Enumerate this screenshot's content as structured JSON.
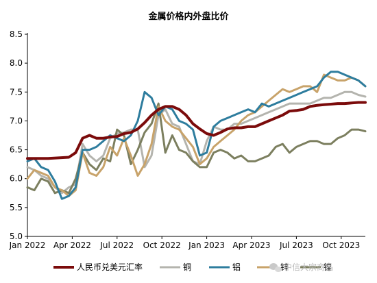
{
  "chart_data": {
    "type": "line",
    "title": "金属价格内外盘比价",
    "xlabel": "",
    "ylabel": "",
    "ylim": [
      5.0,
      8.5
    ],
    "yticks": [
      "5.0",
      "5.5",
      "6.0",
      "6.5",
      "7.0",
      "7.5",
      "8.0",
      "8.5"
    ],
    "xticks": [
      {
        "label": "Jan 2022",
        "t": 0
      },
      {
        "label": "Apr 2022",
        "t": 13
      },
      {
        "label": "Jul 2022",
        "t": 26
      },
      {
        "label": "Oct 2022",
        "t": 39
      },
      {
        "label": "Jan 2023",
        "t": 52
      },
      {
        "label": "Apr 2023",
        "t": 65
      },
      {
        "label": "Jul 2023",
        "t": 78
      },
      {
        "label": "Oct 2023",
        "t": 91
      }
    ],
    "x_unit": "weeks since Jan 2022",
    "grid": false,
    "legend_position": "bottom",
    "series": [
      {
        "name": "人民币兑美元汇率",
        "color": "#7b0b0b",
        "x": [
          0,
          6,
          12,
          14,
          16,
          18,
          20,
          22,
          24,
          26,
          28,
          30,
          32,
          34,
          36,
          38,
          40,
          42,
          44,
          46,
          48,
          50,
          52,
          54,
          56,
          58,
          60,
          62,
          64,
          66,
          68,
          70,
          72,
          74,
          76,
          78,
          80,
          82,
          84,
          86,
          88,
          90,
          92,
          94,
          96,
          98
        ],
        "values": [
          6.35,
          6.35,
          6.37,
          6.45,
          6.7,
          6.75,
          6.7,
          6.7,
          6.72,
          6.73,
          6.78,
          6.8,
          6.86,
          6.97,
          7.1,
          7.2,
          7.25,
          7.25,
          7.2,
          7.1,
          6.95,
          6.86,
          6.78,
          6.75,
          6.8,
          6.86,
          6.88,
          6.88,
          6.9,
          6.9,
          6.95,
          7.0,
          7.05,
          7.1,
          7.17,
          7.18,
          7.2,
          7.25,
          7.27,
          7.28,
          7.29,
          7.3,
          7.3,
          7.31,
          7.32,
          7.32
        ]
      },
      {
        "name": "铜",
        "color": "#b4b4ae",
        "x": [
          0,
          2,
          4,
          6,
          8,
          10,
          12,
          14,
          16,
          18,
          20,
          22,
          24,
          26,
          28,
          30,
          32,
          34,
          36,
          38,
          40,
          42,
          44,
          46,
          48,
          50,
          52,
          54,
          56,
          58,
          60,
          62,
          64,
          66,
          68,
          70,
          72,
          74,
          76,
          78,
          80,
          82,
          84,
          86,
          88,
          90,
          92,
          94,
          96,
          98
        ],
        "values": [
          6.2,
          6.15,
          6.05,
          6.0,
          5.85,
          5.75,
          5.85,
          5.9,
          6.6,
          6.4,
          6.3,
          6.4,
          6.7,
          6.78,
          6.8,
          6.85,
          6.85,
          6.2,
          6.4,
          7.1,
          7.2,
          6.95,
          6.9,
          6.6,
          6.3,
          6.25,
          6.65,
          6.9,
          6.85,
          6.85,
          6.95,
          6.95,
          7.0,
          7.05,
          7.1,
          7.15,
          7.2,
          7.25,
          7.3,
          7.3,
          7.3,
          7.3,
          7.35,
          7.4,
          7.4,
          7.45,
          7.5,
          7.5,
          7.45,
          7.42
        ]
      },
      {
        "name": "铝",
        "color": "#2e7d9e",
        "x": [
          0,
          2,
          4,
          6,
          8,
          10,
          12,
          14,
          16,
          18,
          20,
          22,
          24,
          26,
          28,
          30,
          32,
          34,
          36,
          38,
          40,
          42,
          44,
          46,
          48,
          50,
          52,
          54,
          56,
          58,
          60,
          62,
          64,
          66,
          68,
          70,
          72,
          74,
          76,
          78,
          80,
          82,
          84,
          86,
          88,
          90,
          92,
          94,
          96,
          98
        ],
        "values": [
          6.3,
          6.35,
          6.2,
          6.15,
          5.95,
          5.65,
          5.7,
          5.85,
          6.5,
          6.5,
          6.55,
          6.65,
          6.75,
          6.7,
          6.65,
          6.75,
          7.0,
          7.5,
          7.4,
          7.1,
          7.25,
          7.2,
          7.0,
          6.95,
          6.85,
          6.4,
          6.45,
          6.9,
          7.0,
          7.05,
          7.1,
          7.15,
          7.2,
          7.15,
          7.3,
          7.25,
          7.3,
          7.35,
          7.4,
          7.45,
          7.5,
          7.55,
          7.6,
          7.75,
          7.85,
          7.85,
          7.8,
          7.75,
          7.7,
          7.6
        ]
      },
      {
        "name": "锌",
        "color": "#c8a36a",
        "x": [
          0,
          2,
          4,
          6,
          8,
          10,
          12,
          14,
          16,
          18,
          20,
          22,
          24,
          26,
          28,
          30,
          32,
          34,
          36,
          38,
          40,
          42,
          44,
          46,
          48,
          50,
          52,
          54,
          56,
          58,
          60,
          62,
          64,
          66,
          68,
          70,
          72,
          74,
          76,
          78,
          80,
          82,
          84,
          86,
          88,
          90,
          92,
          94,
          96,
          98
        ],
        "values": [
          6.0,
          6.15,
          6.1,
          6.05,
          5.85,
          5.8,
          5.7,
          5.8,
          6.45,
          6.1,
          6.05,
          6.2,
          6.55,
          6.4,
          6.7,
          6.4,
          6.05,
          6.25,
          6.6,
          7.25,
          7.0,
          6.9,
          6.85,
          6.7,
          6.55,
          6.25,
          6.35,
          6.55,
          6.65,
          6.75,
          6.85,
          7.0,
          7.1,
          7.15,
          7.25,
          7.35,
          7.45,
          7.55,
          7.5,
          7.55,
          7.6,
          7.6,
          7.5,
          7.8,
          7.75,
          7.7,
          7.7,
          7.75,
          7.7,
          7.6
        ]
      },
      {
        "name": "镍",
        "color": "#7c7f5f",
        "x": [
          0,
          2,
          4,
          6,
          8,
          10,
          12,
          14,
          16,
          18,
          20,
          22,
          24,
          26,
          28,
          30,
          32,
          34,
          36,
          38,
          40,
          42,
          44,
          46,
          48,
          50,
          52,
          54,
          56,
          58,
          60,
          62,
          64,
          66,
          68,
          70,
          72,
          74,
          76,
          78,
          80,
          82,
          84,
          86,
          88,
          90,
          92,
          94,
          96,
          98
        ],
        "values": [
          5.85,
          5.8,
          6.0,
          5.95,
          5.75,
          5.8,
          5.75,
          6.0,
          6.45,
          6.25,
          6.15,
          6.35,
          6.3,
          6.85,
          6.75,
          6.25,
          6.5,
          6.8,
          6.95,
          7.3,
          6.45,
          6.75,
          6.5,
          6.45,
          6.3,
          6.2,
          6.2,
          6.45,
          6.5,
          6.45,
          6.35,
          6.4,
          6.3,
          6.3,
          6.35,
          6.4,
          6.55,
          6.6,
          6.45,
          6.55,
          6.6,
          6.65,
          6.65,
          6.6,
          6.6,
          6.7,
          6.75,
          6.85,
          6.85,
          6.82
        ]
      }
    ]
  },
  "watermark": {
    "text": "中信大宗商品",
    "icon": "wechat-icon"
  }
}
